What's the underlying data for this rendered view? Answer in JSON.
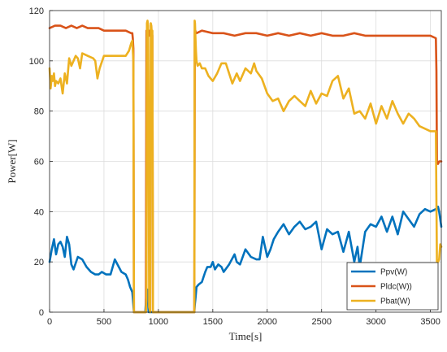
{
  "chart_data": {
    "type": "line",
    "title": "",
    "xlabel": "Time[s]",
    "ylabel": "Power[W]",
    "xlim": [
      0,
      3600
    ],
    "ylim": [
      0,
      120
    ],
    "xticks": [
      0,
      500,
      1000,
      1500,
      2000,
      2500,
      3000,
      3500
    ],
    "yticks": [
      0,
      20,
      40,
      60,
      80,
      100,
      120
    ],
    "grid": true,
    "legend_position": "bottom-right",
    "series": [
      {
        "name": "Ppv(W)",
        "color": "#0072BD",
        "x": [
          0,
          20,
          40,
          60,
          80,
          100,
          120,
          140,
          160,
          180,
          200,
          220,
          260,
          300,
          340,
          380,
          420,
          450,
          480,
          520,
          560,
          600,
          660,
          700,
          720,
          740,
          760,
          775,
          780,
          800,
          850,
          880,
          890,
          895,
          900,
          910,
          920,
          925,
          930,
          935,
          940,
          950,
          1000,
          1100,
          1200,
          1300,
          1330,
          1335,
          1340,
          1350,
          1370,
          1400,
          1430,
          1450,
          1480,
          1500,
          1520,
          1550,
          1580,
          1600,
          1650,
          1700,
          1720,
          1750,
          1800,
          1850,
          1900,
          1930,
          1960,
          2000,
          2030,
          2060,
          2100,
          2150,
          2200,
          2250,
          2300,
          2350,
          2400,
          2450,
          2500,
          2550,
          2600,
          2650,
          2700,
          2750,
          2800,
          2830,
          2850,
          2900,
          2950,
          3000,
          3050,
          3100,
          3150,
          3200,
          3250,
          3300,
          3350,
          3400,
          3450,
          3500,
          3550,
          3570,
          3580,
          3590,
          3600
        ],
        "y": [
          20,
          25,
          29,
          23,
          27,
          28,
          26,
          22,
          30,
          27,
          19,
          17,
          22,
          21,
          18,
          16,
          15,
          15,
          16,
          15,
          15,
          21,
          16,
          15,
          13,
          10,
          8,
          0,
          0,
          0,
          0,
          0,
          8,
          5,
          9,
          0,
          0,
          0,
          0,
          0,
          0,
          0,
          0,
          0,
          0,
          0,
          0,
          3,
          5,
          10,
          11,
          12,
          16,
          18,
          18,
          20,
          17,
          19,
          18,
          16,
          19,
          23,
          20,
          19,
          25,
          22,
          21,
          21,
          30,
          22,
          25,
          29,
          32,
          35,
          31,
          34,
          36,
          33,
          34,
          36,
          25,
          33,
          31,
          32,
          24,
          32,
          20,
          26,
          18,
          32,
          35,
          34,
          38,
          32,
          38,
          31,
          40,
          37,
          34,
          39,
          41,
          40,
          41,
          42,
          40,
          37,
          34
        ]
      },
      {
        "name": "Pldc(W))",
        "color": "#D95319",
        "x": [
          0,
          50,
          100,
          150,
          200,
          250,
          300,
          350,
          400,
          450,
          500,
          550,
          600,
          650,
          700,
          750,
          760,
          765,
          770,
          775,
          780,
          850,
          880,
          885,
          890,
          895,
          900,
          910,
          920,
          925,
          930,
          935,
          940,
          945,
          950,
          1000,
          1100,
          1200,
          1300,
          1330,
          1335,
          1340,
          1345,
          1350,
          1400,
          1500,
          1600,
          1700,
          1800,
          1900,
          2000,
          2100,
          2200,
          2300,
          2400,
          2500,
          2600,
          2700,
          2800,
          2900,
          3000,
          3100,
          3200,
          3300,
          3400,
          3500,
          3550,
          3555,
          3560,
          3570,
          3580,
          3600
        ],
        "y": [
          113,
          114,
          114,
          113,
          114,
          113,
          114,
          113,
          113,
          113,
          112,
          112,
          112,
          112,
          112,
          111,
          111,
          109,
          105,
          0,
          0,
          0,
          0,
          0,
          112,
          112,
          113,
          112,
          110,
          112,
          112,
          110,
          111,
          110,
          0,
          0,
          0,
          0,
          0,
          0,
          112,
          112,
          111,
          111,
          112,
          111,
          111,
          110,
          111,
          111,
          110,
          111,
          110,
          111,
          110,
          111,
          110,
          110,
          111,
          110,
          110,
          110,
          110,
          110,
          110,
          110,
          109,
          96,
          60,
          59,
          60,
          60
        ]
      },
      {
        "name": "Pbat(W)",
        "color": "#EDB120",
        "x": [
          0,
          10,
          20,
          30,
          40,
          50,
          60,
          80,
          100,
          120,
          140,
          160,
          180,
          200,
          220,
          240,
          260,
          280,
          300,
          350,
          400,
          420,
          440,
          460,
          500,
          550,
          600,
          650,
          700,
          730,
          750,
          760,
          770,
          775,
          780,
          850,
          880,
          885,
          890,
          895,
          900,
          905,
          910,
          915,
          920,
          925,
          930,
          935,
          940,
          945,
          950,
          1000,
          1100,
          1200,
          1300,
          1330,
          1333,
          1336,
          1340,
          1345,
          1350,
          1360,
          1380,
          1400,
          1430,
          1460,
          1500,
          1540,
          1580,
          1620,
          1650,
          1680,
          1700,
          1720,
          1750,
          1800,
          1850,
          1880,
          1900,
          1950,
          2000,
          2050,
          2100,
          2150,
          2200,
          2250,
          2300,
          2350,
          2400,
          2450,
          2500,
          2550,
          2600,
          2650,
          2700,
          2750,
          2800,
          2850,
          2900,
          2950,
          3000,
          3050,
          3100,
          3150,
          3200,
          3250,
          3300,
          3350,
          3400,
          3450,
          3500,
          3550,
          3560,
          3570,
          3580,
          3590,
          3600
        ],
        "y": [
          97,
          89,
          94,
          92,
          95,
          90,
          92,
          91,
          93,
          87,
          95,
          91,
          101,
          98,
          100,
          102,
          101,
          97,
          103,
          102,
          101,
          100,
          93,
          97,
          102,
          102,
          102,
          102,
          102,
          104,
          107,
          108,
          100,
          0,
          0,
          0,
          0,
          0,
          5,
          115,
          116,
          114,
          80,
          2,
          1,
          0,
          115,
          114,
          110,
          112,
          0,
          0,
          0,
          0,
          0,
          0,
          116,
          115,
          110,
          104,
          100,
          98,
          99,
          97,
          97,
          94,
          92,
          95,
          99,
          99,
          95,
          91,
          93,
          95,
          92,
          97,
          95,
          99,
          96,
          93,
          87,
          84,
          85,
          80,
          84,
          86,
          84,
          82,
          88,
          83,
          87,
          86,
          92,
          94,
          85,
          89,
          79,
          80,
          77,
          83,
          75,
          82,
          77,
          84,
          79,
          75,
          79,
          77,
          74,
          73,
          72,
          72,
          20,
          20,
          21,
          27,
          26
        ]
      }
    ]
  }
}
